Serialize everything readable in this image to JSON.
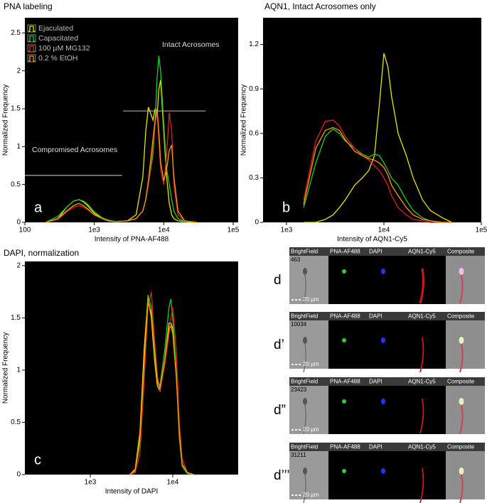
{
  "chart_data": [
    {
      "type": "line",
      "title": "PNA labeling",
      "xlabel": "Intensity of PNA-AF488",
      "ylabel": "Normalized Frequency",
      "label": "a",
      "xscale": "log",
      "xlim": [
        100,
        100000
      ],
      "xticks": [
        100,
        {
          "value": 1000,
          "label": "1e3"
        },
        {
          "value": 10000,
          "label": "1e4"
        },
        {
          "value": 100000,
          "label": "1e5"
        }
      ],
      "ylim": [
        0,
        2.7
      ],
      "yticks": [
        0,
        0.5,
        1,
        1.5,
        2,
        2.5
      ],
      "legend": "upper left",
      "annotations": [
        "Intact Acrosomes",
        "Compromised Acrosomes"
      ],
      "gates": [
        {
          "x": [
            2600,
            40000
          ],
          "y": 1.47
        },
        {
          "x": [
            100,
            2500
          ],
          "y": 0.62
        }
      ],
      "x": [
        200,
        300,
        400,
        500,
        600,
        700,
        800,
        1000,
        1300,
        1600,
        2000,
        3000,
        4000,
        5000,
        5500,
        6000,
        7000,
        7500,
        8000,
        8500,
        9000,
        10000,
        11000,
        12000,
        13000,
        14000,
        16000,
        20000,
        30000
      ],
      "series": [
        {
          "name": "Ejaculated",
          "color": "#e6e600",
          "values": [
            0,
            0.05,
            0.2,
            0.28,
            0.3,
            0.27,
            0.22,
            0.12,
            0.05,
            0.02,
            0.01,
            0.02,
            0.1,
            0.6,
            1.2,
            1.52,
            1.35,
            1.5,
            1.4,
            1.75,
            1.88,
            1.2,
            0.6,
            0.25,
            0.1,
            0.05,
            0.02,
            0.01,
            0
          ]
        },
        {
          "name": "Capacitated",
          "color": "#22cc22",
          "values": [
            0,
            0.08,
            0.2,
            0.28,
            0.3,
            0.28,
            0.24,
            0.14,
            0.06,
            0.03,
            0.01,
            0.02,
            0.05,
            0.15,
            0.3,
            0.5,
            0.9,
            1.3,
            1.9,
            2.2,
            2.0,
            1.3,
            0.7,
            0.5,
            0.3,
            0.15,
            0.05,
            0.01,
            0
          ]
        },
        {
          "name": "100 µM MG132",
          "color": "#dd2222",
          "values": [
            0,
            0.04,
            0.14,
            0.2,
            0.22,
            0.2,
            0.17,
            0.1,
            0.05,
            0.02,
            0.01,
            0.02,
            0.05,
            0.15,
            0.3,
            0.5,
            1.0,
            1.3,
            1.45,
            1.1,
            0.7,
            0.5,
            0.9,
            1.45,
            1.2,
            0.5,
            0.1,
            0.02,
            0
          ]
        },
        {
          "name": "0.2 % EtOH",
          "color": "#ff9900",
          "values": [
            0,
            0.05,
            0.15,
            0.22,
            0.25,
            0.22,
            0.18,
            0.1,
            0.05,
            0.02,
            0.01,
            0.02,
            0.05,
            0.15,
            0.3,
            0.55,
            1.1,
            1.35,
            1.5,
            1.2,
            0.8,
            0.55,
            0.7,
            0.95,
            1.02,
            0.6,
            0.15,
            0.02,
            0
          ]
        }
      ]
    },
    {
      "type": "line",
      "title": "AQN1, Intact Acrosomes only",
      "xlabel": "Intensity of AQN1-Cy5",
      "ylabel": "Normalized Frequency",
      "label": "b",
      "xscale": "log",
      "xlim": [
        575,
        100000
      ],
      "xticks": [
        {
          "value": 1000,
          "label": "1e3"
        },
        {
          "value": 10000,
          "label": "1e4"
        },
        {
          "value": 100000,
          "label": "1e5"
        }
      ],
      "ylim": [
        0,
        1.38
      ],
      "yticks": [
        0,
        0.3,
        0.6,
        0.9,
        1.2
      ],
      "x": [
        1500,
        2000,
        2500,
        3000,
        3500,
        4000,
        5000,
        6000,
        7000,
        8000,
        9000,
        10000,
        11000,
        12000,
        14000,
        17000,
        20000,
        25000,
        30000,
        40000,
        50000
      ],
      "series": [
        {
          "color": "#e6e600",
          "values": [
            0,
            0,
            0.02,
            0.05,
            0.1,
            0.15,
            0.25,
            0.3,
            0.35,
            0.45,
            0.8,
            1.14,
            1.05,
            0.85,
            0.6,
            0.45,
            0.3,
            0.15,
            0.08,
            0.03,
            0
          ]
        },
        {
          "color": "#22cc22",
          "values": [
            0.1,
            0.4,
            0.58,
            0.63,
            0.6,
            0.55,
            0.5,
            0.46,
            0.44,
            0.46,
            0.45,
            0.4,
            0.35,
            0.3,
            0.25,
            0.15,
            0.08,
            0.03,
            0.01,
            0,
            0
          ]
        },
        {
          "color": "#dd2222",
          "values": [
            0.15,
            0.55,
            0.68,
            0.69,
            0.65,
            0.58,
            0.5,
            0.45,
            0.42,
            0.38,
            0.35,
            0.3,
            0.25,
            0.18,
            0.1,
            0.05,
            0.02,
            0.01,
            0,
            0,
            0
          ]
        },
        {
          "color": "#ff9900",
          "values": [
            0.12,
            0.5,
            0.62,
            0.64,
            0.62,
            0.56,
            0.48,
            0.45,
            0.43,
            0.42,
            0.4,
            0.37,
            0.32,
            0.25,
            0.18,
            0.1,
            0.05,
            0.02,
            0.01,
            0,
            0
          ]
        }
      ]
    },
    {
      "type": "line",
      "title": "DAPI,  normalization",
      "xlabel": "Intensity of DAPI",
      "ylabel": "Normalized Frequency",
      "label": "c",
      "xscale": "log",
      "xlim": [
        161,
        62100
      ],
      "xticks": [
        {
          "value": 1000,
          "label": "1e3"
        },
        {
          "value": 10000,
          "label": "1e4"
        }
      ],
      "ylim": [
        0,
        2.04
      ],
      "yticks": [
        0,
        0.5,
        1,
        1.5,
        2
      ],
      "x": [
        3000,
        3500,
        4000,
        4500,
        5000,
        5500,
        6000,
        6500,
        7000,
        8000,
        9000,
        9500,
        10000,
        11000,
        12000,
        13000,
        15000,
        18000
      ],
      "series": [
        {
          "color": "#e6e600",
          "values": [
            0,
            0.05,
            0.4,
            1.2,
            1.7,
            1.5,
            1.1,
            0.85,
            0.8,
            1.1,
            1.45,
            1.45,
            1.4,
            1.0,
            0.4,
            0.1,
            0.02,
            0
          ]
        },
        {
          "color": "#22cc22",
          "values": [
            0,
            0.03,
            0.3,
            1.0,
            1.72,
            1.6,
            1.15,
            0.9,
            0.85,
            1.2,
            1.6,
            1.68,
            1.5,
            1.0,
            0.35,
            0.08,
            0.01,
            0
          ]
        },
        {
          "color": "#dd2222",
          "values": [
            0,
            0.02,
            0.2,
            0.9,
            1.6,
            1.75,
            1.3,
            0.95,
            0.8,
            1.05,
            1.35,
            1.5,
            1.6,
            1.2,
            0.5,
            0.15,
            0.02,
            0
          ]
        },
        {
          "color": "#ff9900",
          "values": [
            0,
            0.04,
            0.35,
            1.1,
            1.65,
            1.55,
            1.2,
            0.9,
            0.82,
            1.1,
            1.4,
            1.42,
            1.35,
            0.95,
            0.4,
            0.1,
            0.02,
            0
          ]
        }
      ]
    }
  ],
  "image_panel": {
    "columns": [
      "BrightField",
      "PNA-AF488",
      "DAPI",
      "AQN1-Cy5",
      "Composite"
    ],
    "scale": "20 µm",
    "rows": [
      {
        "label": "d",
        "id": "463"
      },
      {
        "label": "d’",
        "id": "10034"
      },
      {
        "label": "d”",
        "id": "23423"
      },
      {
        "label": "d’’’",
        "id": "31211"
      }
    ]
  }
}
